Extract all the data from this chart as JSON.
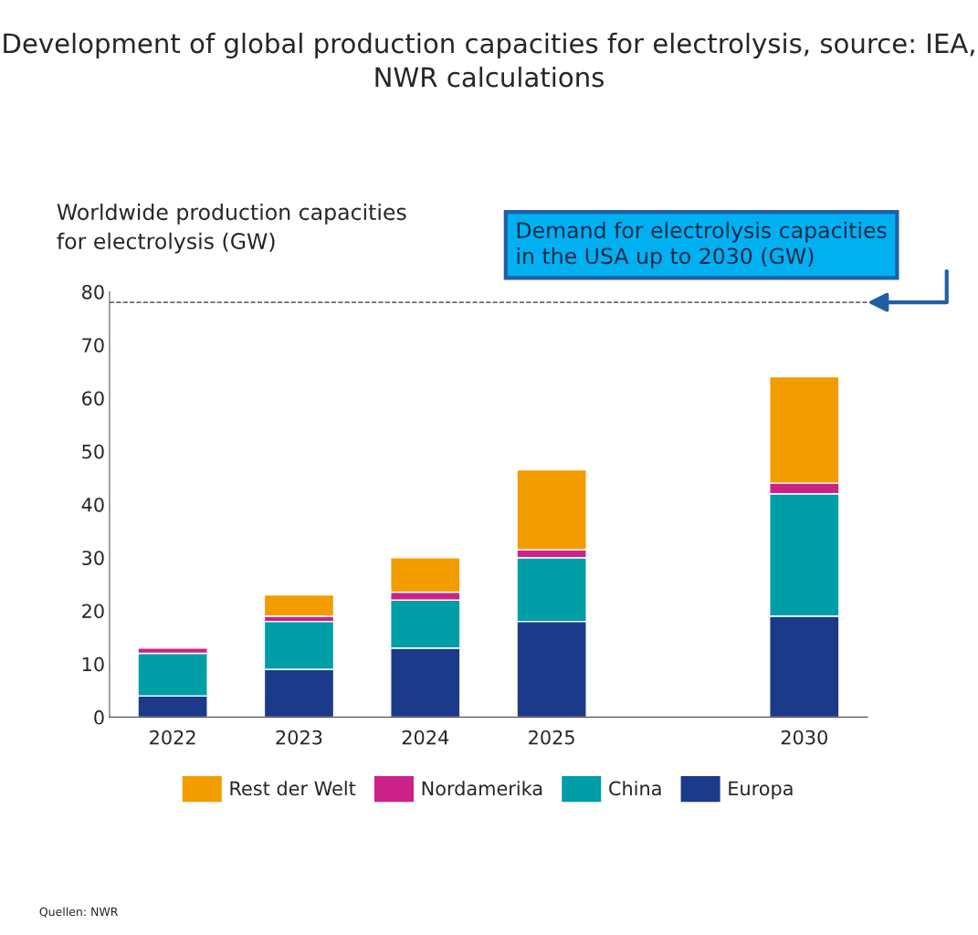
{
  "chart_data": {
    "type": "bar",
    "stacked": true,
    "title": "Development of global production capacities for electrolysis, source: IEA, NWR calculations",
    "ylabel": "Worldwide production capacities\nfor electrolysis (GW)",
    "categories": [
      "2022",
      "2023",
      "2024",
      "2025",
      null,
      "2030"
    ],
    "series": [
      {
        "name": "Europa",
        "color": "#1b3a8a",
        "values": [
          4,
          9,
          13,
          18,
          null,
          19
        ]
      },
      {
        "name": "China",
        "color": "#009ea6",
        "values": [
          8,
          9,
          9,
          12,
          null,
          23
        ]
      },
      {
        "name": "Nordamerika",
        "color": "#cc2288",
        "values": [
          1,
          1,
          1.5,
          1.5,
          null,
          2
        ]
      },
      {
        "name": "Rest der Welt",
        "color": "#f39c00",
        "values": [
          null,
          4,
          6.5,
          15,
          null,
          20
        ]
      }
    ],
    "ylim": [
      0,
      80
    ],
    "yticks": [
      0,
      10,
      20,
      30,
      40,
      50,
      60,
      70,
      80
    ],
    "ref_lines": [
      {
        "axis": "y",
        "value": 78,
        "label": "Demand for electrolysis capacities\nin the USA up to 2030 (GW)",
        "color": "#333333",
        "line_style": "dashed"
      }
    ],
    "legend": "bottom",
    "grid": false,
    "annotations": [
      "Quellen: NWR"
    ]
  }
}
